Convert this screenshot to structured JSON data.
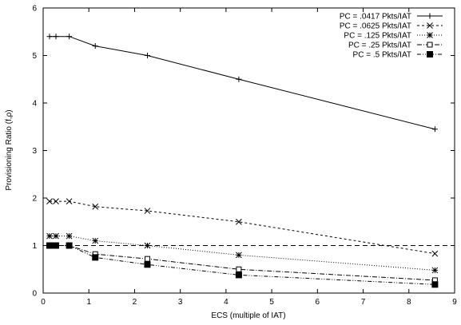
{
  "chart_data": {
    "type": "line",
    "title": "",
    "xlabel": "ECS (multiple of IAT)",
    "ylabel": "Provisioning Ratio (f,ρ)",
    "xlim": [
      0,
      9
    ],
    "ylim": [
      0,
      6
    ],
    "xticks": [
      0,
      1,
      2,
      3,
      4,
      5,
      6,
      7,
      8,
      9
    ],
    "yticks": [
      0,
      1,
      2,
      3,
      4,
      5,
      6
    ],
    "grid": false,
    "legend_position": "top-right",
    "reference_line": {
      "y": 1,
      "style": "dashed"
    },
    "series": [
      {
        "name": "PC = .0417 Pkts/IAT",
        "marker": "plus",
        "dash": "none",
        "x": [
          0.14,
          0.28,
          0.57,
          1.14,
          2.28,
          4.28,
          8.57
        ],
        "y": [
          5.4,
          5.4,
          5.4,
          5.2,
          5.0,
          4.5,
          3.45
        ]
      },
      {
        "name": "PC = .0625 Pkts/IAT",
        "marker": "x",
        "dash": "3,3",
        "x": [
          0.14,
          0.28,
          0.57,
          1.14,
          2.28,
          4.28,
          8.57
        ],
        "y": [
          1.93,
          1.93,
          1.93,
          1.82,
          1.73,
          1.5,
          0.83
        ]
      },
      {
        "name": "PC = .125 Pkts/IAT",
        "marker": "asterisk",
        "dash": "1,2",
        "x": [
          0.14,
          0.28,
          0.57,
          1.14,
          2.28,
          4.28,
          8.57
        ],
        "y": [
          1.2,
          1.2,
          1.2,
          1.1,
          1.0,
          0.8,
          0.48
        ]
      },
      {
        "name": "PC = .25 Pkts/IAT",
        "marker": "open-square",
        "dash": "6,2,1,2",
        "x": [
          0.14,
          0.28,
          0.57,
          1.14,
          2.28,
          4.28,
          8.57
        ],
        "y": [
          1.0,
          1.0,
          1.0,
          0.82,
          0.72,
          0.5,
          0.27
        ]
      },
      {
        "name": "PC = .5 Pkts/IAT",
        "marker": "filled-square",
        "dash": "5,2,1,2,1,2",
        "x": [
          0.14,
          0.28,
          0.57,
          1.14,
          2.28,
          4.28,
          8.57
        ],
        "y": [
          1.0,
          1.0,
          1.0,
          0.75,
          0.6,
          0.38,
          0.18
        ]
      }
    ]
  }
}
